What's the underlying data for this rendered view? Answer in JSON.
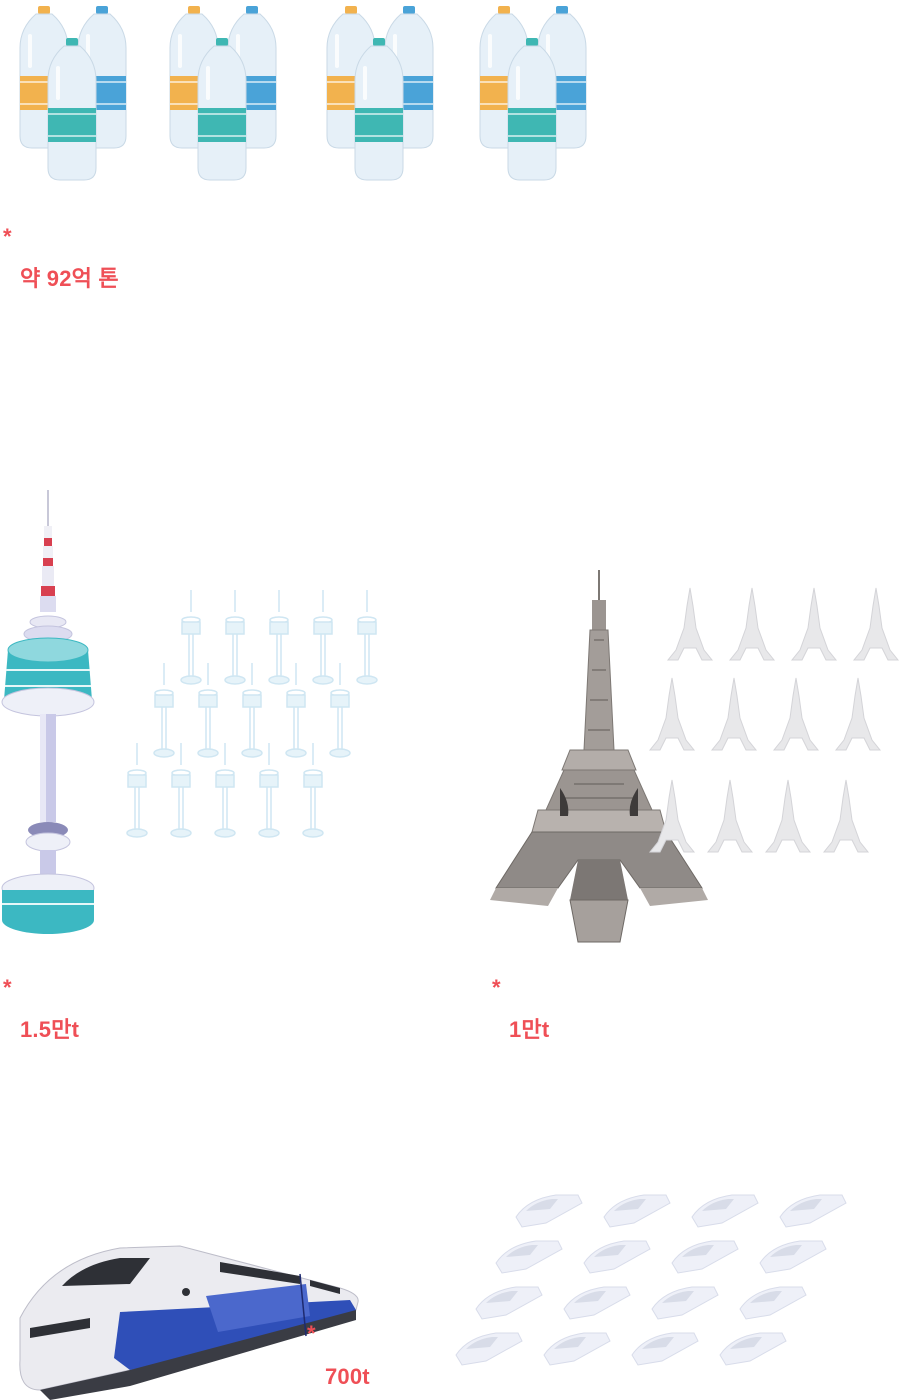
{
  "water": {
    "icon": "water-bottles",
    "group_count": 4,
    "marker": "*",
    "value": "약 92억 톤"
  },
  "namsan": {
    "icon": "namsan-tower",
    "ghost_count": 15,
    "marker": "*",
    "value": "1.5만t"
  },
  "eiffel": {
    "icon": "eiffel-tower",
    "ghost_count": 12,
    "marker": "*",
    "value": "1만t"
  },
  "ktx": {
    "icon": "high-speed-train",
    "ghost_count": 16,
    "marker": "*",
    "value": "700t"
  },
  "colors": {
    "accent": "#ef4f56",
    "bottle_orange": "#f2b24e",
    "bottle_blue": "#4aa3d8",
    "bottle_teal": "#3fb7b3",
    "tower_teal": "#3cb8c2",
    "eiffel_gray": "#8f8a87",
    "train_blue": "#2f4fb8"
  }
}
